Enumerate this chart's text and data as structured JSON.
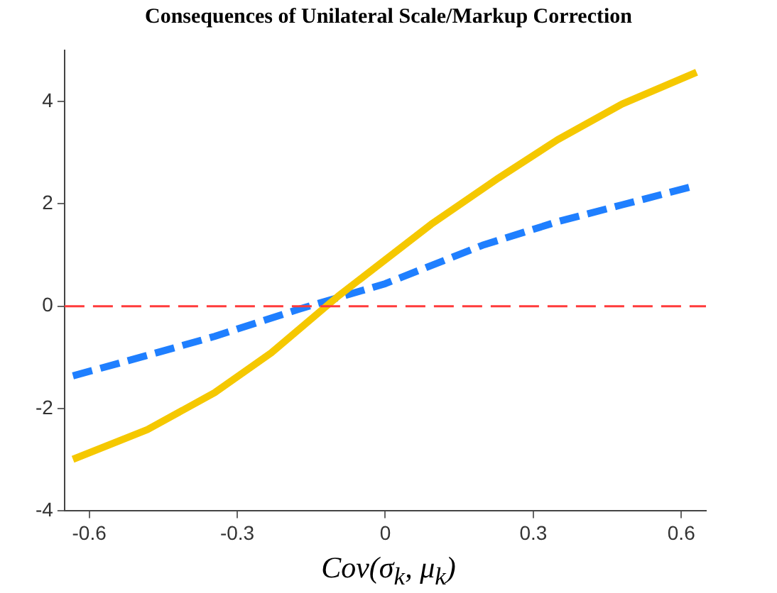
{
  "chart_data": {
    "type": "line",
    "title": "Consequences of Unilateral Scale/Markup Correction",
    "xlabel": "Cov(σ$_{k}$, μ$_{k}$)",
    "xlim": [
      -0.65,
      0.65
    ],
    "xticks": [
      -0.6,
      -0.3,
      0,
      0.3,
      0.6
    ],
    "ylim": [
      -4,
      5
    ],
    "yticks": [
      -4,
      -2,
      0,
      2,
      4
    ],
    "grid": false,
    "legend": false,
    "marker": "none",
    "series": [
      {
        "color": "#f5c800",
        "line_style": "solid",
        "x": [
          -0.633,
          -0.482,
          -0.346,
          -0.231,
          -0.095,
          0.093,
          0.229,
          0.349,
          0.48,
          0.631
        ],
        "values": [
          -2.99,
          -2.41,
          -1.69,
          -0.91,
          0.2,
          1.6,
          2.5,
          3.25,
          3.95,
          4.57
        ]
      },
      {
        "color": "#1f7fff",
        "line_style": "dashed",
        "x": [
          -0.633,
          -0.482,
          -0.346,
          -0.179,
          0,
          0.197,
          0.349,
          0.48,
          0.631
        ],
        "values": [
          -1.36,
          -0.96,
          -0.59,
          -0.07,
          0.44,
          1.19,
          1.65,
          1.98,
          2.36
        ]
      }
    ],
    "ref_lines": [
      {
        "axis": "y",
        "value": 0,
        "color": "#ff3b3b",
        "line_style": "dashed"
      }
    ]
  }
}
